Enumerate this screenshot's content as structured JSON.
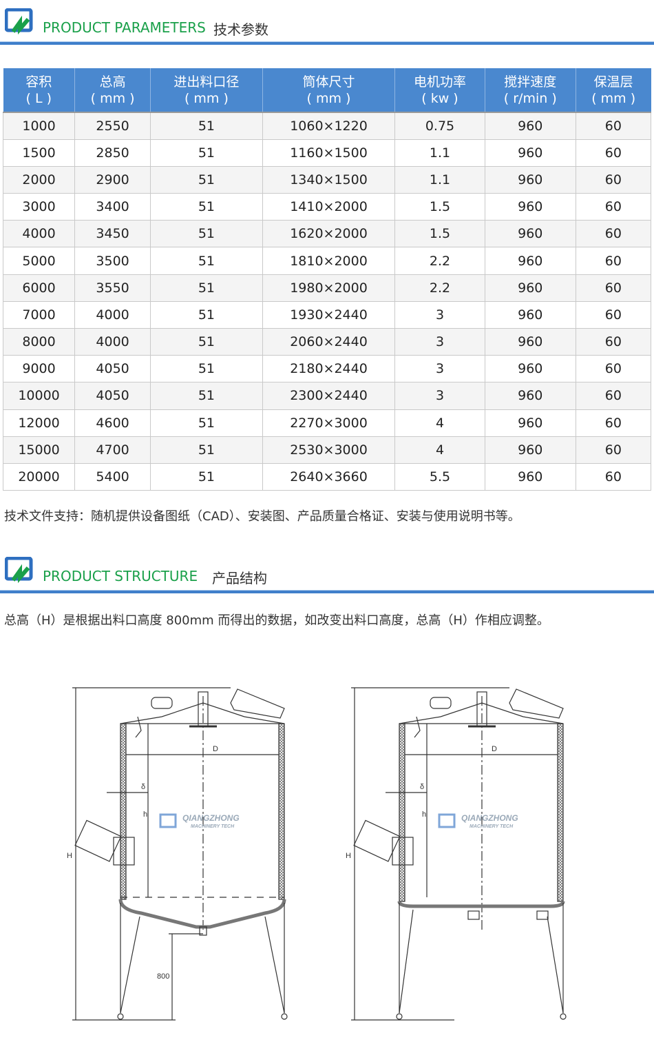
{
  "section1": {
    "title_en": "PRODUCT PARAMETERS",
    "title_zh": "技术参数"
  },
  "table": {
    "headers": [
      [
        "容积",
        "( L )"
      ],
      [
        "总高",
        "( mm )"
      ],
      [
        "进出料口径",
        "( mm )"
      ],
      [
        "筒体尺寸",
        "( mm )"
      ],
      [
        "电机功率",
        "( kw )"
      ],
      [
        "搅拌速度",
        "( r/min )"
      ],
      [
        "保温层",
        "( mm )"
      ]
    ],
    "rows": [
      [
        "1000",
        "2550",
        "51",
        "1060×1220",
        "0.75",
        "960",
        "60"
      ],
      [
        "1500",
        "2850",
        "51",
        "1160×1500",
        "1.1",
        "960",
        "60"
      ],
      [
        "2000",
        "2900",
        "51",
        "1340×1500",
        "1.1",
        "960",
        "60"
      ],
      [
        "3000",
        "3400",
        "51",
        "1410×2000",
        "1.5",
        "960",
        "60"
      ],
      [
        "4000",
        "3450",
        "51",
        "1620×2000",
        "1.5",
        "960",
        "60"
      ],
      [
        "5000",
        "3500",
        "51",
        "1810×2000",
        "2.2",
        "960",
        "60"
      ],
      [
        "6000",
        "3550",
        "51",
        "1980×2000",
        "2.2",
        "960",
        "60"
      ],
      [
        "7000",
        "4000",
        "51",
        "1930×2440",
        "3",
        "960",
        "60"
      ],
      [
        "8000",
        "4000",
        "51",
        "2060×2440",
        "3",
        "960",
        "60"
      ],
      [
        "9000",
        "4050",
        "51",
        "2180×2440",
        "3",
        "960",
        "60"
      ],
      [
        "10000",
        "4050",
        "51",
        "2300×2440",
        "3",
        "960",
        "60"
      ],
      [
        "12000",
        "4600",
        "51",
        "2270×3000",
        "4",
        "960",
        "60"
      ],
      [
        "15000",
        "4700",
        "51",
        "2530×3000",
        "4",
        "960",
        "60"
      ],
      [
        "20000",
        "5400",
        "51",
        "2640×3660",
        "5.5",
        "960",
        "60"
      ]
    ]
  },
  "support_note": "技术文件支持：随机提供设备图纸（CAD）、安装图、产品质量合格证、安装与使用说明书等。",
  "section2": {
    "title_en": "PRODUCT STRUCTURE",
    "title_zh": "产品结构"
  },
  "structure_note": "总高（H）是根据出料口高度 800mm 而得出的数据，如改变出料口高度，总高（H）作相应调整。",
  "diagram": {
    "label_D": "D",
    "label_delta": "δ",
    "label_h": "h",
    "label_H": "H",
    "label_800": "800",
    "watermark": "QIANGZHONG",
    "watermark_sub": "MACHINERY TECH"
  },
  "colors": {
    "accent_blue": "#4a88cf",
    "accent_green": "#1aa04a"
  }
}
